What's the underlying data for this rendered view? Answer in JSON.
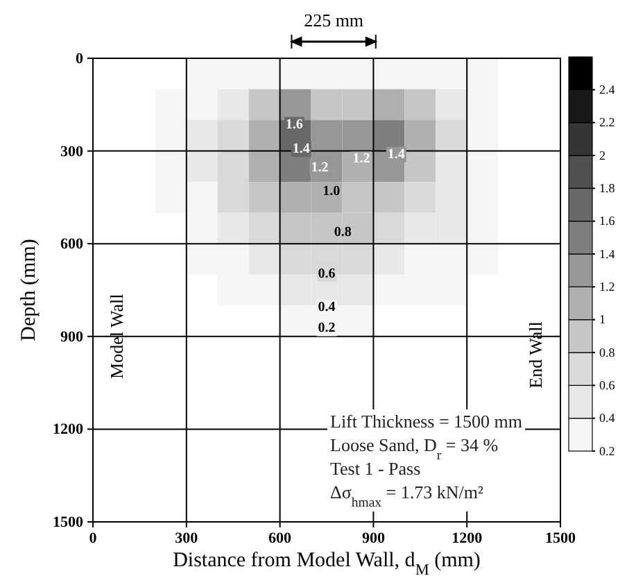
{
  "chart_data": {
    "type": "heatmap",
    "xlabel": "Distance from Model Wall, d$_{M}$ (mm)",
    "ylabel": "Depth (mm)",
    "xlim": [
      0,
      1500
    ],
    "xticks": [
      0,
      300,
      600,
      900,
      1200,
      1500
    ],
    "ylim": [
      1500,
      0
    ],
    "yticks": [
      0,
      300,
      600,
      900,
      1200,
      1500
    ],
    "grid": true,
    "x": [
      50,
      150,
      250,
      350,
      450,
      550,
      650,
      750,
      850,
      950,
      1050,
      1150,
      1250,
      1350,
      1450
    ],
    "y": [
      50,
      150,
      250,
      350,
      450,
      550,
      650,
      750,
      850
    ],
    "cells": [
      [
        null,
        null,
        null,
        0.25,
        0.3,
        0.3,
        0.35,
        0.25,
        0.3,
        0.35,
        0.3,
        0.25,
        0.2,
        null,
        null
      ],
      [
        null,
        null,
        0.2,
        0.3,
        0.5,
        0.8,
        1.2,
        0.9,
        0.9,
        1.1,
        0.8,
        0.5,
        0.3,
        null,
        null
      ],
      [
        null,
        null,
        0.25,
        0.4,
        0.7,
        1.1,
        1.65,
        1.3,
        1.25,
        1.5,
        1.0,
        0.6,
        0.3,
        null,
        null
      ],
      [
        null,
        null,
        0.25,
        0.4,
        0.7,
        1.1,
        1.4,
        1.25,
        1.15,
        1.2,
        0.9,
        0.55,
        0.3,
        null,
        null
      ],
      [
        null,
        null,
        0.2,
        0.35,
        0.6,
        0.9,
        1.05,
        1.0,
        0.95,
        0.85,
        0.7,
        0.5,
        0.3,
        null,
        null
      ],
      [
        null,
        null,
        null,
        0.25,
        0.45,
        0.65,
        0.85,
        0.85,
        0.85,
        0.7,
        0.55,
        0.4,
        0.25,
        null,
        null
      ],
      [
        null,
        null,
        null,
        0.2,
        0.3,
        0.45,
        0.6,
        0.65,
        0.6,
        0.45,
        0.35,
        0.3,
        0.2,
        null,
        null
      ],
      [
        null,
        null,
        null,
        null,
        0.2,
        0.3,
        0.4,
        0.5,
        0.4,
        0.25,
        0.2,
        0.2,
        null,
        null,
        null
      ],
      [
        null,
        null,
        null,
        null,
        null,
        null,
        0.25,
        0.3,
        0.25,
        null,
        null,
        null,
        null,
        null,
        null
      ]
    ],
    "clim": [
      0.2,
      2.6
    ],
    "cticks": [
      0.2,
      0.4,
      0.6,
      0.8,
      1,
      1.2,
      1.4,
      1.6,
      1.8,
      2,
      2.2,
      2.4
    ],
    "annotations": [
      "225 mm",
      "Model Wall",
      "End Wall",
      "Lift Thickness = 1500 mm",
      "Loose Sand, D$_{r}$ = 34 %",
      "Test 1 - Pass",
      "Δσ$_{hmax}$ = 1.73 kN/m²",
      "1.6",
      "1.4",
      "1.2",
      "1.2",
      "1.4",
      "1.0",
      "0.8",
      "0.6",
      "0.4",
      "0.2"
    ]
  }
}
